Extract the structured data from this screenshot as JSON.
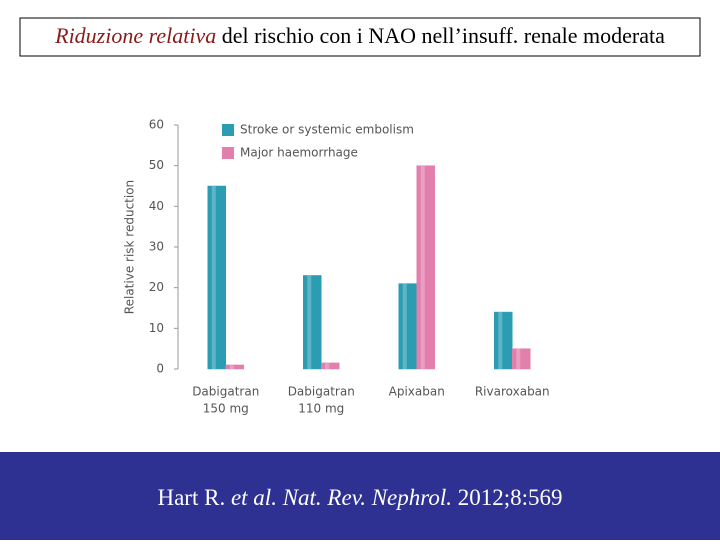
{
  "slide": {
    "title_runs": [
      {
        "text": "Riduzione relativa",
        "style": "italic"
      },
      {
        "text": " del rischio con i NAO nell’insuff. renale moderata",
        "style": "normal"
      }
    ],
    "citation_runs": [
      {
        "text": "Hart R. ",
        "style": "normal"
      },
      {
        "text": "et al.",
        "style": "italic"
      },
      {
        "text": " ",
        "style": "normal"
      },
      {
        "text": "Nat. Rev. Nephrol.",
        "style": "italic"
      },
      {
        "text": " 2012;8:569",
        "style": "normal"
      }
    ]
  },
  "chart_data": {
    "type": "bar",
    "y_label": "Relative risk reduction",
    "categories": [
      [
        "Dabigatran",
        "150 mg"
      ],
      [
        "Dabigatran",
        "110 mg"
      ],
      [
        "Apixaban"
      ],
      [
        "Rivaroxaban"
      ]
    ],
    "series": [
      {
        "name": "Stroke or systemic embolism",
        "color": "#2a9db3",
        "values": [
          45,
          23,
          21,
          14
        ]
      },
      {
        "name": "Major haemorrhage",
        "color": "#e27fac",
        "values": [
          1,
          1.5,
          50,
          5
        ]
      }
    ],
    "ylim": [
      0,
      60
    ],
    "yticks": [
      0,
      10,
      20,
      30,
      40,
      50,
      60
    ],
    "legend": "top-left"
  }
}
